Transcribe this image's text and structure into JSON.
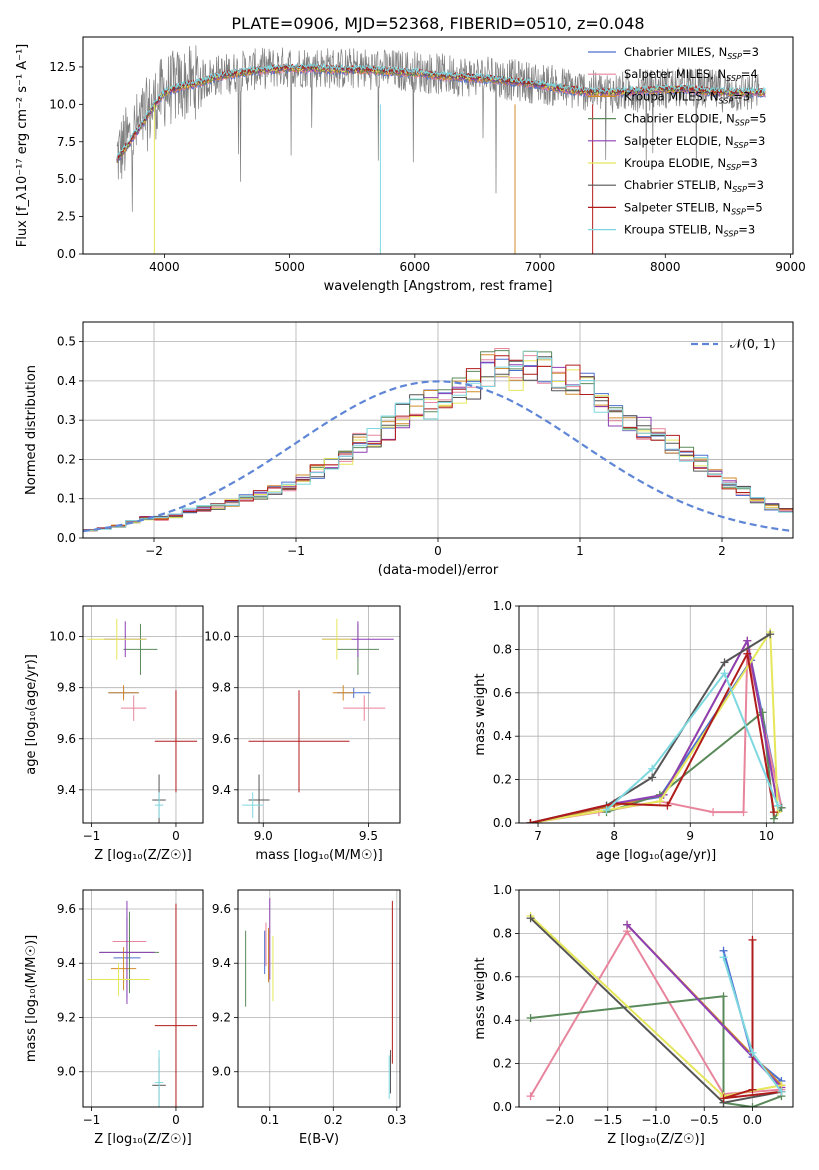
{
  "title": "PLATE=0906, MJD=52368, FIBERID=0510, z=0.048",
  "colors": {
    "chabrier_miles": "#4b6fd0",
    "salpeter_miles": "#e8859d",
    "kroupa_miles": "#d28a2a",
    "chabrier_elodie": "#5a8a5a",
    "salpeter_elodie": "#8e3fb5",
    "kroupa_elodie": "#e6e65a",
    "chabrier_stelib": "#555555",
    "salpeter_stelib": "#b01c1c",
    "kroupa_stelib": "#7ed8e0",
    "observed": "#7f7f7f",
    "normal": "#5f86d6"
  },
  "chart_data": [
    {
      "type": "line",
      "panel": "spectrum",
      "xlabel": "wavelength [Angstrom, rest frame]",
      "ylabel": "Flux [f_λ10⁻¹⁷ erg cm⁻² s⁻¹ A⁻¹]",
      "xlim": [
        3350,
        9020
      ],
      "ylim": [
        0,
        14.5
      ],
      "xticks": [
        "4000",
        "5000",
        "6000",
        "7000",
        "8000",
        "9000"
      ],
      "yticks": [
        "0.0",
        "2.5",
        "5.0",
        "7.5",
        "10.0",
        "12.5"
      ],
      "legend_position": "top-right",
      "legend": [
        {
          "label": "Chabrier MILES, N",
          "sub": "SSP",
          "suffix": "=3",
          "color": "#4b6fd0"
        },
        {
          "label": "Salpeter MILES, N",
          "sub": "SSP",
          "suffix": "=4",
          "color": "#e8859d"
        },
        {
          "label": "Kroupa MILES, N",
          "sub": "SSP",
          "suffix": "=3",
          "color": "#d28a2a"
        },
        {
          "label": "Chabrier ELODIE, N",
          "sub": "SSP",
          "suffix": "=5",
          "color": "#5a8a5a"
        },
        {
          "label": "Salpeter ELODIE, N",
          "sub": "SSP",
          "suffix": "=3",
          "color": "#8e3fb5"
        },
        {
          "label": "Kroupa ELODIE, N",
          "sub": "SSP",
          "suffix": "=3",
          "color": "#e6e65a"
        },
        {
          "label": "Chabrier STELIB, N",
          "sub": "SSP",
          "suffix": "=3",
          "color": "#555555"
        },
        {
          "label": "Salpeter STELIB, N",
          "sub": "SSP",
          "suffix": "=5",
          "color": "#b01c1c"
        },
        {
          "label": "Kroupa STELIB, N",
          "sub": "SSP",
          "suffix": "=3",
          "color": "#7ed8e0"
        }
      ],
      "observed": {
        "wave_range": [
          3620,
          8750
        ],
        "x": [
          3620,
          3700,
          3800,
          3900,
          4000,
          4100,
          4200,
          4300,
          4400,
          4600,
          4800,
          5000,
          5200,
          5400,
          5600,
          5800,
          6000,
          6200,
          6400,
          6600,
          6800,
          7000,
          7200,
          7400,
          7600,
          7800,
          8000,
          8200,
          8400,
          8600,
          8750
        ],
        "y": [
          6.5,
          7.5,
          8.6,
          9.8,
          10.9,
          11.2,
          11.4,
          11.6,
          11.9,
          12.2,
          12.4,
          12.5,
          12.5,
          12.4,
          12.4,
          12.3,
          12.2,
          12.0,
          11.9,
          11.8,
          11.6,
          11.4,
          11.1,
          10.9,
          10.8,
          10.9,
          11.1,
          11.1,
          10.9,
          10.8,
          10.8
        ],
        "noise": 1.4
      },
      "model": {
        "x": [
          3620,
          3700,
          3800,
          3900,
          4000,
          4100,
          4200,
          4300,
          4400,
          4600,
          4800,
          5000,
          5200,
          5400,
          5600,
          5800,
          6000,
          6200,
          6400,
          6600,
          6800,
          7000,
          7200,
          7400,
          7600,
          7800,
          8000,
          8200,
          8400,
          8600,
          8800
        ],
        "y": [
          6.3,
          7.2,
          8.4,
          9.7,
          10.8,
          11.1,
          11.3,
          11.5,
          11.8,
          12.1,
          12.3,
          12.4,
          12.4,
          12.3,
          12.3,
          12.2,
          12.1,
          11.9,
          11.8,
          11.7,
          11.5,
          11.3,
          11.0,
          10.8,
          10.8,
          10.9,
          11.0,
          11.0,
          10.8,
          10.8,
          10.8
        ]
      }
    },
    {
      "type": "line",
      "panel": "residuals",
      "xlabel": "(data-model)/error",
      "ylabel": "Normed distribution",
      "xlim": [
        -2.5,
        2.5
      ],
      "ylim": [
        0,
        0.55
      ],
      "xticks": [
        "−2",
        "−1",
        "0",
        "1",
        "2"
      ],
      "yticks": [
        "0.0",
        "0.1",
        "0.2",
        "0.3",
        "0.4",
        "0.5"
      ],
      "legend": [
        {
          "label": "𝒩(0, 1)",
          "color": "#5f86d6"
        }
      ],
      "bin_width": 0.1,
      "histogram_base": [
        0.02,
        0.025,
        0.03,
        0.04,
        0.05,
        0.05,
        0.055,
        0.07,
        0.075,
        0.08,
        0.09,
        0.1,
        0.11,
        0.12,
        0.13,
        0.15,
        0.17,
        0.19,
        0.21,
        0.24,
        0.26,
        0.28,
        0.31,
        0.33,
        0.34,
        0.36,
        0.38,
        0.39,
        0.43,
        0.45,
        0.42,
        0.44,
        0.43,
        0.42,
        0.4,
        0.38,
        0.34,
        0.31,
        0.3,
        0.28,
        0.26,
        0.24,
        0.21,
        0.19,
        0.16,
        0.14,
        0.12,
        0.1,
        0.08,
        0.07
      ],
      "normal": {
        "mu": 0,
        "sigma": 1
      }
    },
    {
      "type": "scatter",
      "panel": "age-vs-Z",
      "xlabel": "Z [log₁₀(Z/Z☉)]",
      "ylabel": "age  [log₁₀(age/yr)]",
      "xlim": [
        -1.1,
        0.32
      ],
      "ylim": [
        9.27,
        10.12
      ],
      "xticks": [
        "−1",
        "0"
      ],
      "yticks": [
        "9.4",
        "9.6",
        "9.8",
        "10.0"
      ],
      "points": [
        {
          "series": "chabrier_miles",
          "x": -0.62,
          "y": 9.78,
          "xerr": 0.18,
          "yerr": 0.02
        },
        {
          "series": "salpeter_miles",
          "x": -0.5,
          "y": 9.72,
          "xerr": 0.15,
          "yerr": 0.05
        },
        {
          "series": "kroupa_miles",
          "x": -0.62,
          "y": 9.78,
          "xerr": 0.18,
          "yerr": 0.03
        },
        {
          "series": "chabrier_elodie",
          "x": -0.42,
          "y": 9.95,
          "xerr": 0.2,
          "yerr": 0.1
        },
        {
          "series": "salpeter_elodie",
          "x": -0.6,
          "y": 9.99,
          "xerr": 0.25,
          "yerr": 0.07
        },
        {
          "series": "kroupa_elodie",
          "x": -0.7,
          "y": 9.99,
          "xerr": 0.35,
          "yerr": 0.08
        },
        {
          "series": "chabrier_stelib",
          "x": -0.2,
          "y": 9.36,
          "xerr": 0.08,
          "yerr": 0.1
        },
        {
          "series": "salpeter_stelib",
          "x": 0.0,
          "y": 9.59,
          "xerr": 0.25,
          "yerr": 0.2
        },
        {
          "series": "kroupa_stelib",
          "x": -0.2,
          "y": 9.34,
          "xerr": 0.05,
          "yerr": 0.05
        }
      ]
    },
    {
      "type": "scatter",
      "panel": "age-vs-mass",
      "xlabel": "mass [log₁₀(M/M☉)]",
      "ylabel": "",
      "xlim": [
        8.88,
        9.65
      ],
      "ylim": [
        9.27,
        10.12
      ],
      "xticks": [
        "9.0",
        "9.5"
      ],
      "yticks": [
        "9.4",
        "9.6",
        "9.8",
        "10.0"
      ],
      "points": [
        {
          "series": "chabrier_miles",
          "x": 9.43,
          "y": 9.78,
          "xerr": 0.08,
          "yerr": 0.02
        },
        {
          "series": "salpeter_miles",
          "x": 9.48,
          "y": 9.72,
          "xerr": 0.1,
          "yerr": 0.05
        },
        {
          "series": "kroupa_miles",
          "x": 9.38,
          "y": 9.78,
          "xerr": 0.05,
          "yerr": 0.03
        },
        {
          "series": "chabrier_elodie",
          "x": 9.45,
          "y": 9.95,
          "xerr": 0.1,
          "yerr": 0.1
        },
        {
          "series": "salpeter_elodie",
          "x": 9.45,
          "y": 9.99,
          "xerr": 0.17,
          "yerr": 0.07
        },
        {
          "series": "kroupa_elodie",
          "x": 9.35,
          "y": 9.99,
          "xerr": 0.07,
          "yerr": 0.08
        },
        {
          "series": "chabrier_stelib",
          "x": 8.98,
          "y": 9.36,
          "xerr": 0.05,
          "yerr": 0.1
        },
        {
          "series": "salpeter_stelib",
          "x": 9.17,
          "y": 9.59,
          "xerr": 0.24,
          "yerr": 0.2
        },
        {
          "series": "kroupa_stelib",
          "x": 8.95,
          "y": 9.34,
          "xerr": 0.05,
          "yerr": 0.05
        }
      ]
    },
    {
      "type": "line",
      "panel": "weight-vs-age",
      "xlabel": "age  [log₁₀(age/yr)]",
      "ylabel": "mass weight",
      "xlim": [
        6.75,
        10.35
      ],
      "ylim": [
        0,
        1
      ],
      "xticks": [
        "7",
        "8",
        "9",
        "10"
      ],
      "yticks": [
        "0.0",
        "0.2",
        "0.4",
        "0.6",
        "0.8",
        "1.0"
      ],
      "series": [
        {
          "key": "chabrier_miles",
          "x": [
            6.9,
            7.9,
            8.6,
            9.8,
            10.2
          ],
          "y": [
            0.0,
            0.08,
            0.12,
            0.75,
            0.07
          ]
        },
        {
          "key": "salpeter_miles",
          "x": [
            6.9,
            7.8,
            8.6,
            9.3,
            9.7,
            9.75,
            10.2
          ],
          "y": [
            0.0,
            0.05,
            0.1,
            0.05,
            0.05,
            0.8,
            0.07
          ]
        },
        {
          "key": "kroupa_miles",
          "x": [
            6.9,
            8.0,
            8.65,
            9.75,
            10.15
          ],
          "y": [
            0.0,
            0.08,
            0.13,
            0.84,
            0.08
          ]
        },
        {
          "key": "chabrier_elodie",
          "x": [
            7.9,
            8.6,
            9.95,
            10.1,
            10.2
          ],
          "y": [
            0.05,
            0.13,
            0.51,
            0.02,
            0.07
          ]
        },
        {
          "key": "salpeter_elodie",
          "x": [
            6.9,
            8.0,
            8.65,
            9.75,
            10.15
          ],
          "y": [
            0.0,
            0.09,
            0.13,
            0.84,
            0.08
          ]
        },
        {
          "key": "kroupa_elodie",
          "x": [
            6.9,
            8.6,
            10.05,
            10.15
          ],
          "y": [
            0.0,
            0.1,
            0.88,
            0.05
          ]
        },
        {
          "key": "chabrier_stelib",
          "x": [
            6.9,
            7.9,
            8.5,
            9.45,
            10.05
          ],
          "y": [
            0.0,
            0.08,
            0.21,
            0.74,
            0.87
          ]
        },
        {
          "key": "salpeter_stelib",
          "x": [
            6.9,
            8.0,
            8.7,
            9.75,
            10.1
          ],
          "y": [
            0.0,
            0.09,
            0.08,
            0.78,
            0.05
          ]
        },
        {
          "key": "kroupa_stelib",
          "x": [
            7.9,
            8.5,
            9.45,
            10.15
          ],
          "y": [
            0.06,
            0.25,
            0.69,
            0.08
          ]
        }
      ]
    },
    {
      "type": "scatter",
      "panel": "mass-vs-Z",
      "xlabel": "Z [log₁₀(Z/Z☉)]",
      "ylabel": "mass [log₁₀(M/M☉)]",
      "xlim": [
        -1.1,
        0.32
      ],
      "ylim": [
        8.87,
        9.67
      ],
      "xticks": [
        "−1",
        "0"
      ],
      "yticks": [
        "9.0",
        "9.2",
        "9.4",
        "9.6"
      ],
      "points": [
        {
          "series": "chabrier_miles",
          "x": -0.58,
          "y": 9.42,
          "xerr": 0.16,
          "yerr": 0.15
        },
        {
          "series": "salpeter_miles",
          "x": -0.55,
          "y": 9.48,
          "xerr": 0.2,
          "yerr": 0.06
        },
        {
          "series": "kroupa_miles",
          "x": -0.62,
          "y": 9.38,
          "xerr": 0.15,
          "yerr": 0.08
        },
        {
          "series": "chabrier_elodie",
          "x": -0.55,
          "y": 9.44,
          "xerr": 0.35,
          "yerr": 0.15
        },
        {
          "series": "salpeter_elodie",
          "x": -0.58,
          "y": 9.44,
          "xerr": 0.33,
          "yerr": 0.19
        },
        {
          "series": "kroupa_elodie",
          "x": -0.68,
          "y": 9.34,
          "xerr": 0.37,
          "yerr": 0.06
        },
        {
          "series": "chabrier_stelib",
          "x": -0.2,
          "y": 8.95,
          "xerr": 0.08,
          "yerr": 0.1
        },
        {
          "series": "salpeter_stelib",
          "x": 0.0,
          "y": 9.17,
          "xerr": 0.25,
          "yerr": 0.45
        },
        {
          "series": "kroupa_stelib",
          "x": -0.2,
          "y": 8.96,
          "xerr": 0.05,
          "yerr": 0.12
        }
      ]
    },
    {
      "type": "scatter",
      "panel": "mass-vs-EBV",
      "xlabel": "E(B-V)",
      "ylabel": "",
      "xlim": [
        0.05,
        0.305
      ],
      "ylim": [
        8.87,
        9.67
      ],
      "xticks": [
        "0.1",
        "0.2",
        "0.3"
      ],
      "yticks": [
        "9.0",
        "9.2",
        "9.4",
        "9.6"
      ],
      "points": [
        {
          "series": "chabrier_miles",
          "x": 0.092,
          "y": 9.44,
          "xerr": 0,
          "yerr": 0.08
        },
        {
          "series": "salpeter_miles",
          "x": 0.094,
          "y": 9.47,
          "xerr": 0,
          "yerr": 0.08
        },
        {
          "series": "kroupa_miles",
          "x": 0.098,
          "y": 9.43,
          "xerr": 0,
          "yerr": 0.1
        },
        {
          "series": "chabrier_elodie",
          "x": 0.062,
          "y": 9.38,
          "xerr": 0,
          "yerr": 0.14
        },
        {
          "series": "salpeter_elodie",
          "x": 0.1,
          "y": 9.49,
          "xerr": 0,
          "yerr": 0.15
        },
        {
          "series": "kroupa_elodie",
          "x": 0.105,
          "y": 9.38,
          "xerr": 0,
          "yerr": 0.12
        },
        {
          "series": "chabrier_stelib",
          "x": 0.29,
          "y": 9.0,
          "xerr": 0,
          "yerr": 0.08
        },
        {
          "series": "salpeter_stelib",
          "x": 0.293,
          "y": 9.33,
          "xerr": 0,
          "yerr": 0.3
        },
        {
          "series": "kroupa_stelib",
          "x": 0.288,
          "y": 8.98,
          "xerr": 0,
          "yerr": 0.08
        }
      ]
    },
    {
      "type": "line",
      "panel": "weight-vs-Z",
      "xlabel": "Z [log₁₀(Z/Z☉)]",
      "ylabel": "mass weight",
      "xlim": [
        -2.42,
        0.42
      ],
      "ylim": [
        0,
        1
      ],
      "xticks": [
        "−2.0",
        "−1.5",
        "−1.0",
        "−0.5",
        "0.0"
      ],
      "yticks": [
        "0.0",
        "0.2",
        "0.4",
        "0.6",
        "0.8",
        "1.0"
      ],
      "series": [
        {
          "key": "chabrier_miles",
          "x": [
            -0.3,
            0.0,
            0.3
          ],
          "y": [
            0.72,
            0.23,
            0.12
          ]
        },
        {
          "key": "salpeter_miles",
          "x": [
            -2.3,
            -1.3,
            -0.3,
            0.3
          ],
          "y": [
            0.05,
            0.81,
            0.06,
            0.08
          ]
        },
        {
          "key": "kroupa_miles",
          "x": [
            -1.3,
            0.3
          ],
          "y": [
            0.84,
            0.1
          ]
        },
        {
          "key": "chabrier_elodie",
          "x": [
            -2.3,
            -0.3,
            -0.3,
            0.0,
            0.3
          ],
          "y": [
            0.41,
            0.51,
            0.02,
            0.0,
            0.05
          ]
        },
        {
          "key": "salpeter_elodie",
          "x": [
            -1.3,
            0.3
          ],
          "y": [
            0.84,
            0.09
          ]
        },
        {
          "key": "kroupa_elodie",
          "x": [
            -2.3,
            -0.3,
            0.3
          ],
          "y": [
            0.88,
            0.05,
            0.1
          ]
        },
        {
          "key": "chabrier_stelib",
          "x": [
            -2.3,
            -0.3,
            0.3
          ],
          "y": [
            0.87,
            0.02,
            0.07
          ]
        },
        {
          "key": "salpeter_stelib",
          "x": [
            0.0,
            0.0,
            -0.3,
            0.3
          ],
          "y": [
            0.77,
            0.08,
            0.04,
            0.07
          ]
        },
        {
          "key": "kroupa_stelib",
          "x": [
            -0.3,
            0.0,
            0.3
          ],
          "y": [
            0.69,
            0.25,
            0.07
          ]
        }
      ]
    }
  ]
}
